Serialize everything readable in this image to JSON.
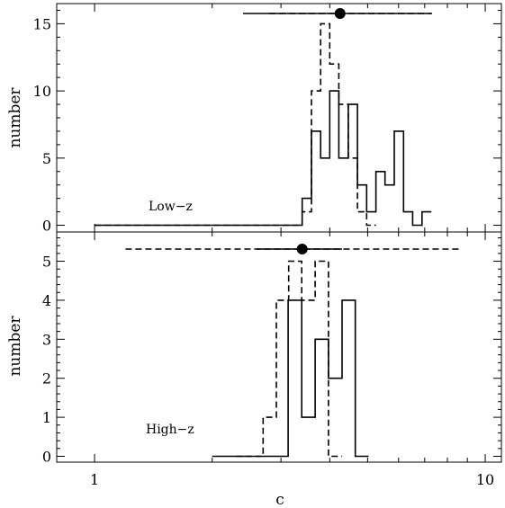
{
  "chart_data": [
    {
      "type": "histogram",
      "panel": "top",
      "annotation": "Low−z",
      "ylabel": "number",
      "xscale": "log",
      "xlim": [
        0.8,
        11
      ],
      "ylim": [
        -0.5,
        16.5
      ],
      "yticks": [
        0,
        5,
        10,
        15
      ],
      "ytick_labels": [
        "0",
        "5",
        "10",
        "15"
      ],
      "series": [
        {
          "style": "solid",
          "edges": [
            1.0,
            3.4,
            3.59,
            3.79,
            4.0,
            4.22,
            4.46,
            4.71,
            4.97,
            5.25,
            5.54,
            5.85,
            6.18,
            6.52,
            6.89,
            7.28
          ],
          "counts": [
            0,
            2,
            7,
            5,
            10,
            5,
            9,
            3,
            1,
            4,
            3,
            7,
            1,
            0,
            1
          ]
        },
        {
          "style": "dashed",
          "edges": [
            1.0,
            3.4,
            3.59,
            3.79,
            4.0,
            4.22,
            4.46,
            4.71,
            4.97,
            5.25
          ],
          "counts": [
            0,
            1,
            10,
            15,
            12,
            9,
            5,
            1,
            0
          ]
        }
      ],
      "summary": {
        "marker": 4.25,
        "solid_range": [
          2.4,
          7.3
        ],
        "dashed_range": [
          2.8,
          7.3
        ]
      }
    },
    {
      "type": "histogram",
      "panel": "bottom",
      "annotation": "High−z",
      "ylabel": "number",
      "xlabel": "c",
      "xscale": "log",
      "xlim": [
        0.8,
        11
      ],
      "ylim": [
        -0.15,
        5.75
      ],
      "yticks": [
        0,
        1,
        2,
        3,
        4,
        5
      ],
      "ytick_labels": [
        "0",
        "1",
        "2",
        "3",
        "4",
        "5"
      ],
      "xticks": [
        1,
        10
      ],
      "xtick_labels": [
        "1",
        "10"
      ],
      "series": [
        {
          "style": "solid",
          "edges": [
            2.0,
            3.13,
            3.39,
            3.67,
            3.97,
            4.3,
            4.65,
            5.03
          ],
          "counts": [
            0,
            4,
            1,
            3,
            2,
            4,
            0
          ]
        },
        {
          "style": "dashed",
          "edges": [
            2.3,
            2.7,
            2.92,
            3.14,
            3.39,
            3.67,
            3.97,
            4.3
          ],
          "counts": [
            0,
            1,
            4,
            5,
            4,
            5,
            0
          ]
        }
      ],
      "summary": {
        "marker": 3.4,
        "solid_range": [
          2.6,
          4.3
        ],
        "dashed_range": [
          1.2,
          8.6
        ]
      }
    }
  ]
}
